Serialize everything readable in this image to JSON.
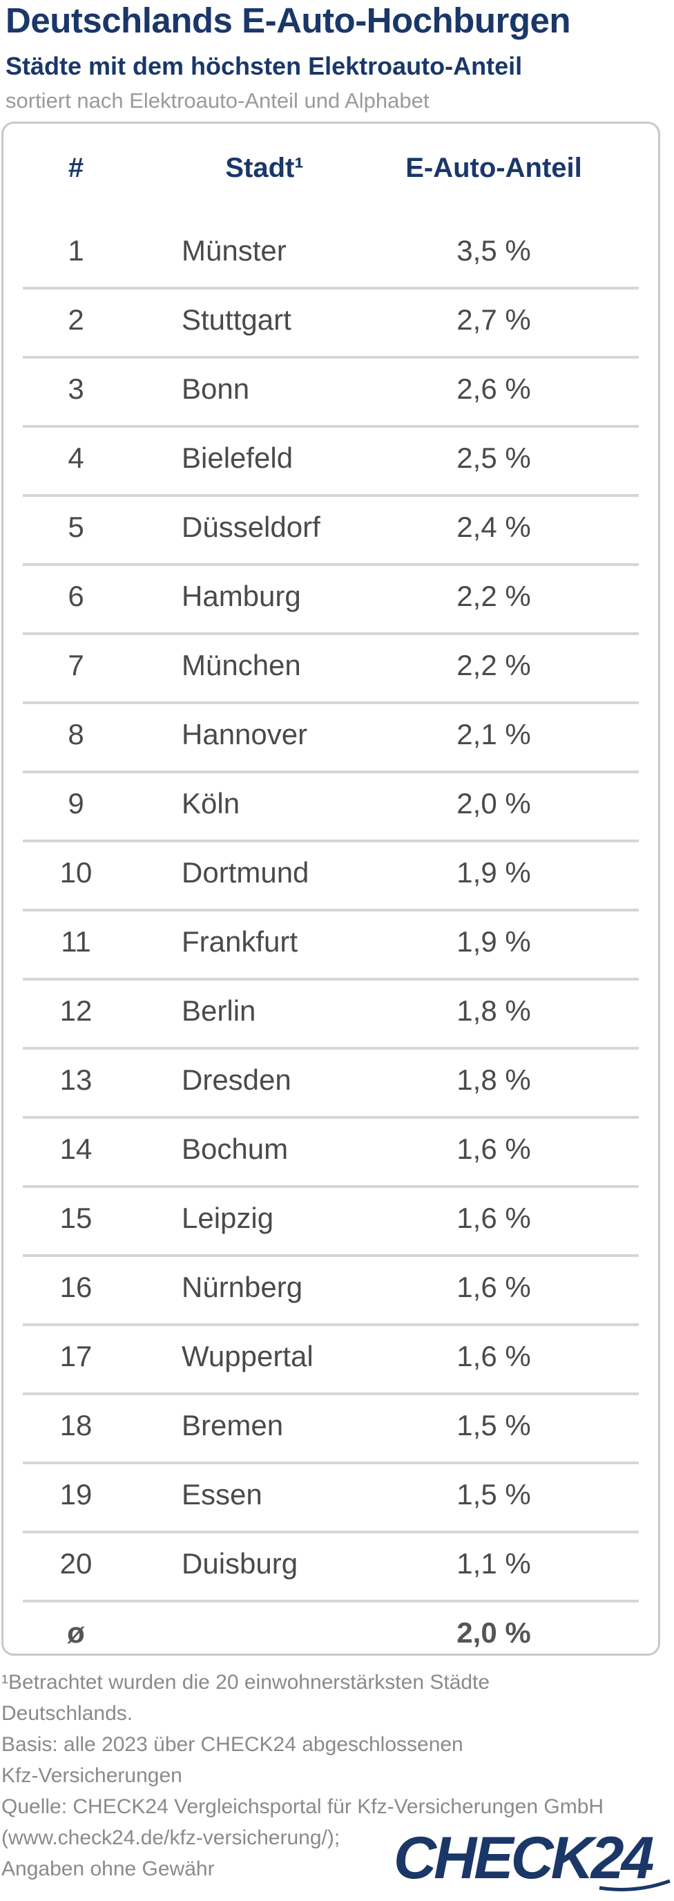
{
  "header": {
    "title": "Deutschlands E-Auto-Hochburgen",
    "subtitle": "Städte mit dem höchsten Elektroauto-Anteil",
    "note": "sortiert nach Elektroauto-Anteil und Alphabet"
  },
  "table": {
    "columns": [
      "#",
      "Stadt¹",
      "E-Auto-Anteil"
    ],
    "rows": [
      {
        "rank": "1",
        "city": "Münster",
        "share": "3,5 %"
      },
      {
        "rank": "2",
        "city": "Stuttgart",
        "share": "2,7 %"
      },
      {
        "rank": "3",
        "city": "Bonn",
        "share": "2,6 %"
      },
      {
        "rank": "4",
        "city": "Bielefeld",
        "share": "2,5 %"
      },
      {
        "rank": "5",
        "city": "Düsseldorf",
        "share": "2,4 %"
      },
      {
        "rank": "6",
        "city": "Hamburg",
        "share": "2,2 %"
      },
      {
        "rank": "7",
        "city": "München",
        "share": "2,2 %"
      },
      {
        "rank": "8",
        "city": "Hannover",
        "share": "2,1 %"
      },
      {
        "rank": "9",
        "city": "Köln",
        "share": "2,0 %"
      },
      {
        "rank": "10",
        "city": "Dortmund",
        "share": "1,9 %"
      },
      {
        "rank": "11",
        "city": "Frankfurt",
        "share": "1,9 %"
      },
      {
        "rank": "12",
        "city": "Berlin",
        "share": "1,8 %"
      },
      {
        "rank": "13",
        "city": "Dresden",
        "share": "1,8 %"
      },
      {
        "rank": "14",
        "city": "Bochum",
        "share": "1,6 %"
      },
      {
        "rank": "15",
        "city": "Leipzig",
        "share": "1,6 %"
      },
      {
        "rank": "16",
        "city": "Nürnberg",
        "share": "1,6 %"
      },
      {
        "rank": "17",
        "city": "Wuppertal",
        "share": "1,6 %"
      },
      {
        "rank": "18",
        "city": "Bremen",
        "share": "1,5 %"
      },
      {
        "rank": "19",
        "city": "Essen",
        "share": "1,5 %"
      },
      {
        "rank": "20",
        "city": "Duisburg",
        "share": "1,1 %"
      }
    ],
    "average": {
      "symbol": "ø",
      "share": "2,0 %"
    }
  },
  "footer": {
    "lines": [
      "¹Betrachtet wurden die 20 einwohnerstärksten Städte",
      "Deutschlands.",
      "Basis: alle 2023 über CHECK24 abgeschlossenen",
      "Kfz-Versicherungen",
      "Quelle: CHECK24 Vergleichsportal für Kfz-Versicherungen GmbH",
      "(www.check24.de/kfz-versicherung/);",
      "Angaben ohne Gewähr"
    ]
  },
  "logo": {
    "text": "CHECK24",
    "color": "#1a3768"
  },
  "colors": {
    "heading": "#1a3768",
    "text": "#4a4a4a",
    "muted": "#9a9a9a",
    "rule": "#d6d6d6"
  }
}
